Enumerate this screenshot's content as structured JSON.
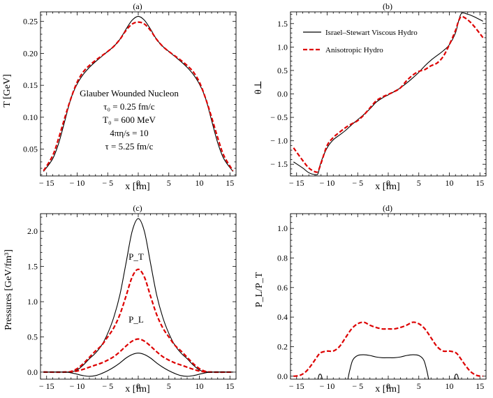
{
  "chart_data": [
    {
      "type": "line",
      "title": "(a)",
      "xlabel": "x [fm]",
      "ylabel": "T [GeV]",
      "xlim": [
        -16,
        16
      ],
      "ylim": [
        0.008,
        0.265
      ],
      "xticks": [
        "-15",
        "-10",
        "-5",
        "0",
        "5",
        "10",
        "15"
      ],
      "yticks": [
        "0.05",
        "0.10",
        "0.15",
        "0.20",
        "0.25"
      ],
      "annotations": [
        "Glauber Wounded Nucleon",
        "τ₀ = 0.25 fm/c",
        "T₀ = 600 MeV",
        "4πη/s = 10",
        "τ = 5.25 fm/c"
      ],
      "series": [
        {
          "style": "solid",
          "color": "#000000",
          "x": [
            -15.5,
            -14,
            -13,
            -12,
            -11,
            -10,
            -9,
            -8,
            -7,
            -6,
            -5,
            -4,
            -3,
            -2,
            -1,
            0,
            1,
            2,
            3,
            4,
            5,
            6,
            7,
            8,
            9,
            10,
            11,
            12,
            13,
            14,
            15.5
          ],
          "y": [
            0.015,
            0.035,
            0.06,
            0.095,
            0.13,
            0.152,
            0.167,
            0.178,
            0.187,
            0.195,
            0.203,
            0.211,
            0.222,
            0.238,
            0.252,
            0.258,
            0.252,
            0.238,
            0.222,
            0.211,
            0.203,
            0.195,
            0.187,
            0.178,
            0.167,
            0.152,
            0.13,
            0.095,
            0.06,
            0.035,
            0.015
          ]
        },
        {
          "style": "dashed",
          "color": "#dd0000",
          "x": [
            -15.5,
            -14,
            -13,
            -12,
            -11,
            -10,
            -9,
            -8,
            -7,
            -6,
            -5,
            -4,
            -3,
            -2,
            -1,
            0,
            1,
            2,
            3,
            4,
            5,
            6,
            7,
            8,
            9,
            10,
            11,
            12,
            13,
            14,
            15.5
          ],
          "y": [
            0.016,
            0.04,
            0.068,
            0.1,
            0.13,
            0.155,
            0.171,
            0.181,
            0.189,
            0.196,
            0.203,
            0.211,
            0.222,
            0.236,
            0.246,
            0.249,
            0.246,
            0.236,
            0.222,
            0.211,
            0.203,
            0.196,
            0.189,
            0.181,
            0.171,
            0.155,
            0.13,
            0.1,
            0.068,
            0.04,
            0.016
          ]
        }
      ]
    },
    {
      "type": "line",
      "title": "(b)",
      "xlabel": "x [fm]",
      "ylabel": "θ⊥",
      "xlim": [
        -16,
        16
      ],
      "ylim": [
        -1.75,
        1.75
      ],
      "xticks": [
        "-15",
        "-10",
        "-5",
        "0",
        "5",
        "10",
        "15"
      ],
      "yticks": [
        "-1.5",
        "-1.0",
        "-0.5",
        "0.0",
        "0.5",
        "1.0",
        "1.5"
      ],
      "legend_position": "top-left",
      "series": [
        {
          "name": "Israel–Stewart Viscous Hydro",
          "style": "solid",
          "color": "#000000",
          "x": [
            -15.5,
            -14,
            -13,
            -12,
            -11.5,
            -11,
            -10,
            -9,
            -8,
            -7,
            -6,
            -5,
            -4,
            -3,
            -2,
            -1,
            0,
            1,
            2,
            3,
            4,
            5,
            6,
            7,
            8,
            9,
            10,
            11,
            11.5,
            12,
            13,
            14,
            15.5
          ],
          "y": [
            -1.45,
            -1.58,
            -1.68,
            -1.72,
            -1.7,
            -1.45,
            -1.15,
            -0.98,
            -0.88,
            -0.78,
            -0.66,
            -0.55,
            -0.44,
            -0.32,
            -0.18,
            -0.09,
            -0.02,
            0.05,
            0.13,
            0.23,
            0.34,
            0.46,
            0.6,
            0.72,
            0.82,
            0.92,
            1.05,
            1.3,
            1.55,
            1.72,
            1.7,
            1.65,
            1.55
          ]
        },
        {
          "name": "Anisotropic Hydro",
          "style": "dashed",
          "color": "#dd0000",
          "x": [
            -15.5,
            -14,
            -13,
            -12,
            -11.5,
            -11,
            -10,
            -9,
            -8,
            -7,
            -6,
            -5,
            -4,
            -3,
            -2,
            -1,
            0,
            1,
            2,
            3,
            4,
            5,
            6,
            7,
            8,
            9,
            10,
            11,
            11.5,
            12,
            13,
            14,
            15.5
          ],
          "y": [
            -1.15,
            -1.42,
            -1.58,
            -1.66,
            -1.65,
            -1.48,
            -1.1,
            -0.93,
            -0.82,
            -0.72,
            -0.64,
            -0.57,
            -0.45,
            -0.3,
            -0.15,
            -0.07,
            -0.01,
            0.05,
            0.13,
            0.28,
            0.4,
            0.48,
            0.52,
            0.6,
            0.66,
            0.8,
            1.05,
            1.35,
            1.55,
            1.65,
            1.58,
            1.45,
            1.2
          ]
        }
      ]
    },
    {
      "type": "line",
      "title": "(c)",
      "xlabel": "x [fm]",
      "ylabel": "Pressures [GeV/fm³]",
      "xlim": [
        -16,
        16
      ],
      "ylim": [
        -0.1,
        2.25
      ],
      "xticks": [
        "-15",
        "-10",
        "-5",
        "0",
        "5",
        "10",
        "15"
      ],
      "yticks": [
        "0.0",
        "0.5",
        "1.0",
        "1.5",
        "2.0"
      ],
      "annotations": [
        "P_T",
        "P_L"
      ],
      "series": [
        {
          "name": "P_T",
          "style": "solid",
          "color": "#000000",
          "x": [
            -15.5,
            -12,
            -11,
            -10,
            -9,
            -8,
            -7,
            -6,
            -5,
            -4,
            -3,
            -2,
            -1,
            0,
            1,
            2,
            3,
            4,
            5,
            6,
            7,
            8,
            9,
            10,
            11,
            12,
            15.5
          ],
          "y": [
            0,
            0,
            0.005,
            0.03,
            0.1,
            0.19,
            0.27,
            0.38,
            0.55,
            0.78,
            1.1,
            1.55,
            2.0,
            2.18,
            2.0,
            1.55,
            1.1,
            0.78,
            0.55,
            0.38,
            0.27,
            0.19,
            0.1,
            0.03,
            0.005,
            0,
            0
          ]
        },
        {
          "name": "P_T",
          "style": "dashed",
          "color": "#dd0000",
          "x": [
            -15.5,
            -12,
            -11,
            -10,
            -9,
            -8,
            -7,
            -6,
            -5,
            -4,
            -3,
            -2,
            -1,
            0,
            1,
            2,
            3,
            4,
            5,
            6,
            7,
            8,
            9,
            10,
            11,
            12,
            15.5
          ],
          "y": [
            0,
            0,
            0.01,
            0.05,
            0.12,
            0.21,
            0.3,
            0.38,
            0.5,
            0.63,
            0.82,
            1.08,
            1.35,
            1.46,
            1.35,
            1.08,
            0.82,
            0.63,
            0.5,
            0.38,
            0.3,
            0.21,
            0.12,
            0.05,
            0.01,
            0,
            0
          ]
        },
        {
          "name": "P_L",
          "style": "dashed",
          "color": "#dd0000",
          "x": [
            -15.5,
            -12,
            -11,
            -10,
            -9,
            -8,
            -7,
            -6,
            -5,
            -4,
            -3,
            -2,
            -1,
            0,
            1,
            2,
            3,
            4,
            5,
            6,
            7,
            8,
            9,
            10,
            11,
            12,
            15.5
          ],
          "y": [
            0,
            0,
            0.003,
            0.015,
            0.04,
            0.07,
            0.1,
            0.13,
            0.17,
            0.22,
            0.29,
            0.37,
            0.44,
            0.47,
            0.44,
            0.37,
            0.29,
            0.22,
            0.17,
            0.13,
            0.1,
            0.07,
            0.04,
            0.015,
            0.003,
            0,
            0
          ]
        },
        {
          "name": "P_L",
          "style": "solid",
          "color": "#000000",
          "x": [
            -15.5,
            -12,
            -11,
            -10,
            -9,
            -8,
            -7,
            -6,
            -5,
            -4,
            -3,
            -2,
            -1,
            0,
            1,
            2,
            3,
            4,
            5,
            6,
            7,
            8,
            9,
            10,
            11,
            12,
            15.5
          ],
          "y": [
            0,
            0,
            -0.01,
            -0.03,
            -0.05,
            -0.06,
            -0.05,
            -0.02,
            0.02,
            0.07,
            0.13,
            0.2,
            0.25,
            0.27,
            0.25,
            0.2,
            0.13,
            0.07,
            0.02,
            -0.02,
            -0.05,
            -0.06,
            -0.05,
            -0.03,
            -0.01,
            0,
            0
          ]
        }
      ]
    },
    {
      "type": "line",
      "title": "(d)",
      "xlabel": "x [fm]",
      "ylabel": "P_L/P_T",
      "xlim": [
        -16,
        16
      ],
      "ylim": [
        -0.02,
        1.1
      ],
      "xticks": [
        "-15",
        "-10",
        "-5",
        "0",
        "5",
        "10",
        "15"
      ],
      "yticks": [
        "0.0",
        "0.2",
        "0.4",
        "0.6",
        "0.8",
        "1.0"
      ],
      "series": [
        {
          "style": "solid",
          "color": "#000000",
          "x": [
            -6.6,
            -6.3,
            -5.8,
            -5,
            -4,
            -3,
            -2,
            -1,
            0,
            1,
            2,
            3,
            4,
            5,
            5.8,
            6.3,
            6.6
          ],
          "y": [
            -0.02,
            0.04,
            0.11,
            0.14,
            0.145,
            0.14,
            0.13,
            0.125,
            0.125,
            0.125,
            0.13,
            0.14,
            0.145,
            0.14,
            0.11,
            0.04,
            -0.02
          ]
        },
        {
          "style": "solid",
          "color": "#000000",
          "x": [
            -11.5,
            -11.3,
            -11.0,
            -10.8
          ],
          "y": [
            -0.02,
            0.01,
            0.01,
            -0.02
          ]
        },
        {
          "style": "solid",
          "color": "#000000",
          "x": [
            10.8,
            11.0,
            11.3,
            11.5
          ],
          "y": [
            -0.02,
            0.01,
            0.01,
            -0.02
          ]
        },
        {
          "style": "dashed",
          "color": "#dd0000",
          "x": [
            -15.5,
            -14.5,
            -13.5,
            -12.5,
            -11.5,
            -11,
            -10,
            -9,
            -8,
            -7,
            -6,
            -5,
            -4,
            -3,
            -2,
            -1,
            0,
            1,
            2,
            3,
            4,
            5,
            6,
            7,
            8,
            9,
            10,
            11,
            11.5,
            12.5,
            13.5,
            14.5,
            15.5
          ],
          "y": [
            0.0,
            0.005,
            0.03,
            0.08,
            0.14,
            0.16,
            0.17,
            0.17,
            0.2,
            0.26,
            0.32,
            0.355,
            0.365,
            0.345,
            0.33,
            0.32,
            0.32,
            0.32,
            0.33,
            0.345,
            0.365,
            0.355,
            0.32,
            0.26,
            0.2,
            0.17,
            0.17,
            0.16,
            0.14,
            0.08,
            0.03,
            0.005,
            0.0
          ]
        }
      ]
    }
  ]
}
